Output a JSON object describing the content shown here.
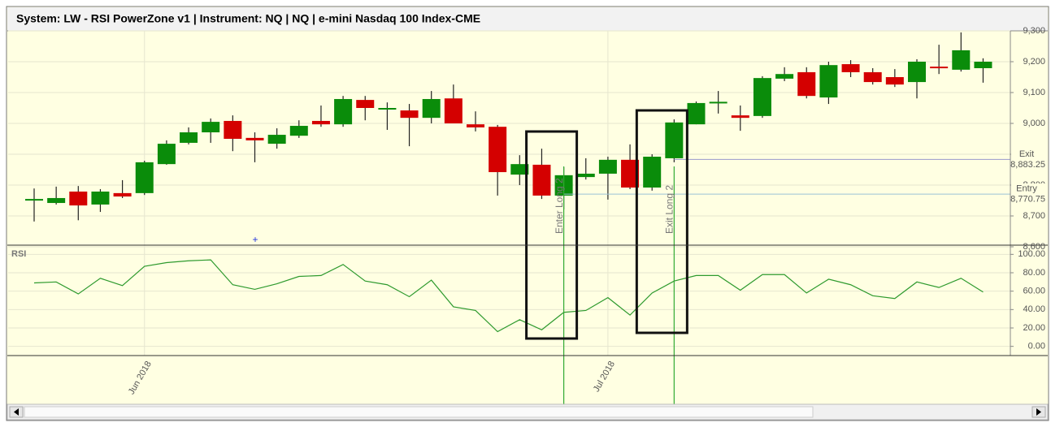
{
  "chart_data": {
    "type": "candlestick",
    "title": "System: LW - RSI PowerZone v1  |  Instrument: NQ  |  NQ  |  e-mini Nasdaq 100 Index-CME",
    "categories": [
      null,
      null,
      null,
      null,
      null,
      "Jun 2018",
      null,
      null,
      null,
      null,
      null,
      null,
      null,
      null,
      null,
      null,
      null,
      null,
      null,
      null,
      null,
      null,
      null,
      null,
      null,
      null,
      "Jul 2018",
      null,
      null,
      null,
      null,
      null,
      null,
      null,
      null,
      null,
      null,
      null,
      null,
      null,
      null,
      null,
      null,
      null
    ],
    "open": [
      8752,
      8742,
      8779,
      8737,
      8774,
      8774,
      8868,
      8937,
      8971,
      9008,
      8953,
      8934,
      8960,
      9008,
      8997,
      9076,
      9048,
      9042,
      9018,
      9081,
      8997,
      8989,
      8834,
      8866,
      8766,
      8826,
      8837,
      8882,
      8792,
      8887,
      8997,
      9066,
      9026,
      9024,
      9145,
      9166,
      9084,
      9192,
      9166,
      9150,
      9134,
      9184,
      9174,
      9179
    ],
    "high": [
      8789,
      8795,
      8797,
      8787,
      8816,
      8879,
      8945,
      8987,
      9016,
      9026,
      8971,
      8984,
      9010,
      9058,
      9089,
      9089,
      9068,
      9063,
      9105,
      9126,
      9039,
      8995,
      8897,
      8918,
      8858,
      8887,
      8892,
      8932,
      8900,
      9013,
      9071,
      9105,
      9058,
      9153,
      9182,
      9182,
      9200,
      9205,
      9179,
      9176,
      9208,
      9255,
      9295,
      9211
    ],
    "low": [
      8682,
      8737,
      8686,
      8713,
      8758,
      8768,
      8866,
      8932,
      8937,
      8910,
      8874,
      8918,
      8953,
      8989,
      8989,
      9010,
      8979,
      8926,
      9000,
      9000,
      8974,
      8766,
      8800,
      8755,
      8721,
      8818,
      8753,
      8787,
      8782,
      8874,
      8997,
      9032,
      8976,
      9018,
      9137,
      9081,
      9063,
      9150,
      9126,
      9118,
      9081,
      9160,
      9168,
      9132
    ],
    "close": [
      8755,
      8758,
      8734,
      8779,
      8763,
      8874,
      8934,
      8971,
      9005,
      8950,
      8945,
      8963,
      8992,
      8997,
      9079,
      9050,
      9050,
      9018,
      9079,
      9000,
      8987,
      8842,
      8868,
      8766,
      8832,
      8837,
      8882,
      8792,
      8892,
      9003,
      9066,
      9070,
      9018,
      9147,
      9160,
      9089,
      9189,
      9166,
      9134,
      9126,
      9200,
      9179,
      9237,
      9200
    ],
    "up_color": "#0a8c0a",
    "down_color": "#d40000",
    "ylim": [
      8600,
      9300
    ],
    "yticks": [
      {
        "value": 8600,
        "label": "8,600"
      },
      {
        "value": 8700,
        "label": "8,700"
      },
      {
        "value": 8800,
        "label": "8,800"
      },
      {
        "value": 8900,
        "label": "8,900"
      },
      {
        "value": 9000,
        "label": "9,000"
      },
      {
        "value": 9100,
        "label": "9,100"
      },
      {
        "value": 9200,
        "label": "9,200"
      },
      {
        "value": 9300,
        "label": "9,300"
      }
    ],
    "grid": true,
    "trades": [
      {
        "label": "Enter Long 2",
        "tag": "Entry",
        "price": 8770.75,
        "price_label": "8,770.75"
      },
      {
        "label": "Exit Long 2",
        "tag": "Exit",
        "price": 8883.25,
        "price_label": "8,883.25"
      }
    ],
    "rsi": {
      "name": "RSI",
      "color": "#2e9a2e",
      "values": [
        69,
        70,
        57,
        74,
        66,
        87,
        91,
        93,
        94,
        67,
        62,
        68,
        76,
        77,
        89,
        71,
        67,
        54,
        72,
        43,
        39,
        16,
        29,
        18,
        37,
        39,
        53,
        34,
        58,
        71,
        77,
        77,
        61,
        78,
        78,
        58,
        73,
        67,
        55,
        52,
        70,
        64,
        74,
        59
      ],
      "ylim": [
        -10,
        110
      ],
      "yticks": [
        {
          "value": 0,
          "label": "0.00"
        },
        {
          "value": 20,
          "label": "20.00"
        },
        {
          "value": 40,
          "label": "40.00"
        },
        {
          "value": 60,
          "label": "60.00"
        },
        {
          "value": 80,
          "label": "80.00"
        },
        {
          "value": 100,
          "label": "100.00"
        }
      ]
    }
  }
}
